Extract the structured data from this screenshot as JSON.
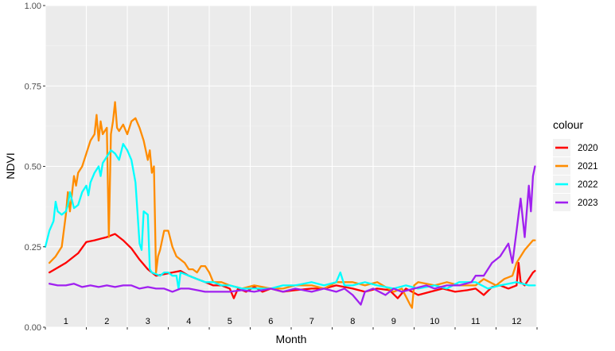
{
  "chart_data": {
    "type": "line",
    "title": "",
    "xlabel": "Month",
    "ylabel": "NDVI",
    "ylim": [
      0,
      1
    ],
    "xlim": [
      0.5,
      12.5
    ],
    "y_ticks": [
      "0.00",
      "0.25",
      "0.50",
      "0.75",
      "1.00"
    ],
    "y_tick_values": [
      0,
      0.25,
      0.5,
      0.75,
      1.0
    ],
    "x_tick_labels": [
      "1",
      "2",
      "3",
      "4",
      "5",
      "6",
      "7",
      "8",
      "9",
      "10",
      "11",
      "12"
    ],
    "grid": true,
    "legend": {
      "title": "colour",
      "placement": "right"
    },
    "series": [
      {
        "name": "2020",
        "color": "#ff0000",
        "x": [
          0.6,
          1.0,
          1.3,
          1.5,
          1.7,
          2.0,
          2.2,
          2.4,
          2.6,
          2.8,
          3.0,
          3.2,
          3.4,
          3.6,
          3.8,
          4.0,
          4.2,
          4.4,
          4.6,
          4.8,
          5.0,
          5.1,
          5.2,
          5.4,
          5.6,
          5.8,
          6.0,
          6.3,
          6.6,
          7.0,
          7.3,
          7.6,
          8.0,
          8.3,
          8.6,
          8.9,
          9.1,
          9.3,
          9.6,
          9.9,
          10.2,
          10.5,
          10.8,
          11.0,
          11.2,
          11.4,
          11.6,
          11.8,
          12.0,
          12.05,
          12.1,
          12.2,
          12.3,
          12.4,
          12.45
        ],
        "y": [
          0.17,
          0.2,
          0.23,
          0.265,
          0.27,
          0.28,
          0.29,
          0.27,
          0.245,
          0.21,
          0.18,
          0.16,
          0.165,
          0.17,
          0.175,
          0.16,
          0.15,
          0.14,
          0.13,
          0.13,
          0.12,
          0.09,
          0.12,
          0.11,
          0.125,
          0.11,
          0.12,
          0.11,
          0.115,
          0.12,
          0.12,
          0.13,
          0.12,
          0.11,
          0.12,
          0.115,
          0.09,
          0.12,
          0.1,
          0.11,
          0.12,
          0.11,
          0.115,
          0.12,
          0.1,
          0.125,
          0.13,
          0.12,
          0.13,
          0.2,
          0.14,
          0.13,
          0.15,
          0.17,
          0.175
        ]
      },
      {
        "name": "2021",
        "color": "#ff8c00",
        "x": [
          0.6,
          0.75,
          0.9,
          1.0,
          1.05,
          1.1,
          1.2,
          1.25,
          1.3,
          1.4,
          1.5,
          1.6,
          1.7,
          1.75,
          1.8,
          1.85,
          1.9,
          2.0,
          2.05,
          2.1,
          2.15,
          2.2,
          2.25,
          2.3,
          2.4,
          2.5,
          2.6,
          2.7,
          2.8,
          2.9,
          3.0,
          3.05,
          3.1,
          3.15,
          3.2,
          3.25,
          3.3,
          3.4,
          3.5,
          3.6,
          3.7,
          3.8,
          3.9,
          4.0,
          4.1,
          4.2,
          4.3,
          4.4,
          4.5,
          4.6,
          4.8,
          5.0,
          5.3,
          5.6,
          6.0,
          6.3,
          6.6,
          7.0,
          7.3,
          7.6,
          8.0,
          8.3,
          8.6,
          9.0,
          9.2,
          9.4,
          9.45,
          9.5,
          9.6,
          10.0,
          10.3,
          10.6,
          11.0,
          11.2,
          11.5,
          11.7,
          11.9,
          12.0,
          12.2,
          12.4,
          12.45
        ],
        "y": [
          0.2,
          0.22,
          0.25,
          0.35,
          0.42,
          0.36,
          0.47,
          0.44,
          0.48,
          0.5,
          0.54,
          0.58,
          0.6,
          0.66,
          0.58,
          0.64,
          0.6,
          0.62,
          0.28,
          0.6,
          0.64,
          0.7,
          0.62,
          0.61,
          0.63,
          0.6,
          0.64,
          0.65,
          0.62,
          0.58,
          0.52,
          0.55,
          0.48,
          0.5,
          0.17,
          0.22,
          0.24,
          0.3,
          0.3,
          0.25,
          0.22,
          0.21,
          0.2,
          0.18,
          0.18,
          0.17,
          0.19,
          0.19,
          0.17,
          0.14,
          0.14,
          0.13,
          0.12,
          0.13,
          0.12,
          0.12,
          0.13,
          0.13,
          0.12,
          0.14,
          0.14,
          0.13,
          0.14,
          0.11,
          0.12,
          0.07,
          0.06,
          0.13,
          0.14,
          0.13,
          0.14,
          0.13,
          0.13,
          0.15,
          0.13,
          0.15,
          0.16,
          0.2,
          0.24,
          0.27,
          0.27
        ]
      },
      {
        "name": "2022",
        "color": "#00ffff",
        "x": [
          0.5,
          0.6,
          0.7,
          0.75,
          0.8,
          0.9,
          1.0,
          1.05,
          1.1,
          1.2,
          1.3,
          1.4,
          1.5,
          1.55,
          1.6,
          1.7,
          1.8,
          1.85,
          1.9,
          2.0,
          2.1,
          2.2,
          2.3,
          2.4,
          2.5,
          2.6,
          2.7,
          2.8,
          2.85,
          2.9,
          3.0,
          3.05,
          3.1,
          3.2,
          3.3,
          3.4,
          3.5,
          3.6,
          3.7,
          3.75,
          3.8,
          4.0,
          4.2,
          4.4,
          4.6,
          4.8,
          5.0,
          5.3,
          5.6,
          6.0,
          6.3,
          6.6,
          7.0,
          7.3,
          7.6,
          7.7,
          7.8,
          8.0,
          8.3,
          8.6,
          9.0,
          9.3,
          9.6,
          10.0,
          10.3,
          10.6,
          11.0,
          11.3,
          11.6,
          12.0,
          12.3,
          12.45
        ],
        "y": [
          0.25,
          0.3,
          0.33,
          0.39,
          0.36,
          0.35,
          0.36,
          0.38,
          0.42,
          0.37,
          0.38,
          0.42,
          0.44,
          0.41,
          0.45,
          0.48,
          0.5,
          0.47,
          0.51,
          0.53,
          0.55,
          0.54,
          0.52,
          0.57,
          0.55,
          0.52,
          0.45,
          0.26,
          0.24,
          0.36,
          0.35,
          0.18,
          0.17,
          0.165,
          0.16,
          0.17,
          0.17,
          0.16,
          0.16,
          0.12,
          0.17,
          0.16,
          0.15,
          0.14,
          0.14,
          0.13,
          0.13,
          0.12,
          0.12,
          0.12,
          0.13,
          0.13,
          0.14,
          0.13,
          0.14,
          0.17,
          0.13,
          0.13,
          0.14,
          0.13,
          0.12,
          0.13,
          0.12,
          0.13,
          0.12,
          0.14,
          0.14,
          0.12,
          0.13,
          0.14,
          0.13,
          0.13
        ]
      },
      {
        "name": "2023",
        "color": "#a020f0",
        "x": [
          0.6,
          0.8,
          1.0,
          1.2,
          1.4,
          1.6,
          1.8,
          2.0,
          2.2,
          2.4,
          2.6,
          2.8,
          3.0,
          3.2,
          3.4,
          3.6,
          3.8,
          4.0,
          4.2,
          4.4,
          4.6,
          4.8,
          5.0,
          5.3,
          5.6,
          6.0,
          6.3,
          6.6,
          7.0,
          7.3,
          7.6,
          7.8,
          8.0,
          8.2,
          8.3,
          8.5,
          8.8,
          9.0,
          9.2,
          9.5,
          9.8,
          10.0,
          10.3,
          10.6,
          10.9,
          11.0,
          11.2,
          11.4,
          11.6,
          11.8,
          11.9,
          12.0,
          12.05,
          12.1,
          12.2,
          12.3,
          12.35,
          12.4,
          12.45
        ],
        "y": [
          0.135,
          0.13,
          0.13,
          0.135,
          0.125,
          0.13,
          0.125,
          0.13,
          0.125,
          0.13,
          0.13,
          0.12,
          0.125,
          0.12,
          0.12,
          0.11,
          0.12,
          0.12,
          0.115,
          0.11,
          0.11,
          0.11,
          0.11,
          0.115,
          0.11,
          0.12,
          0.11,
          0.12,
          0.11,
          0.12,
          0.11,
          0.12,
          0.1,
          0.07,
          0.11,
          0.12,
          0.1,
          0.12,
          0.11,
          0.12,
          0.13,
          0.12,
          0.13,
          0.13,
          0.14,
          0.16,
          0.16,
          0.2,
          0.22,
          0.26,
          0.2,
          0.3,
          0.35,
          0.4,
          0.28,
          0.44,
          0.36,
          0.47,
          0.5
        ]
      }
    ]
  }
}
